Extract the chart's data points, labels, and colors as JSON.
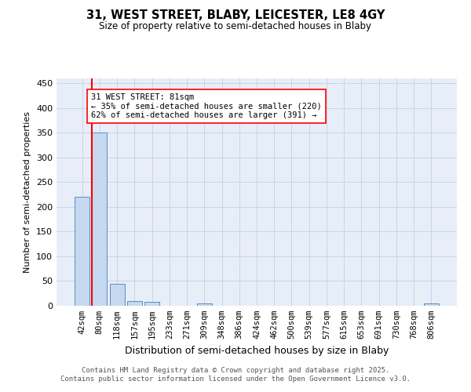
{
  "title_line1": "31, WEST STREET, BLABY, LEICESTER, LE8 4GY",
  "title_line2": "Size of property relative to semi-detached houses in Blaby",
  "xlabel": "Distribution of semi-detached houses by size in Blaby",
  "ylabel": "Number of semi-detached properties",
  "bins": [
    "42sqm",
    "80sqm",
    "118sqm",
    "157sqm",
    "195sqm",
    "233sqm",
    "271sqm",
    "309sqm",
    "348sqm",
    "386sqm",
    "424sqm",
    "462sqm",
    "500sqm",
    "539sqm",
    "577sqm",
    "615sqm",
    "653sqm",
    "691sqm",
    "730sqm",
    "768sqm",
    "806sqm"
  ],
  "values": [
    220,
    350,
    45,
    10,
    8,
    0,
    0,
    4,
    0,
    0,
    0,
    0,
    0,
    0,
    0,
    0,
    0,
    0,
    0,
    0,
    4
  ],
  "bar_color": "#c5d8f0",
  "bar_edge_color": "#5a8fc2",
  "highlight_bar_index": 1,
  "property_size": "81sqm",
  "property_name": "31 WEST STREET",
  "pct_smaller": 35,
  "pct_larger": 62,
  "count_smaller": 220,
  "count_larger": 391,
  "ylim": [
    0,
    460
  ],
  "yticks": [
    0,
    50,
    100,
    150,
    200,
    250,
    300,
    350,
    400,
    450
  ],
  "grid_color": "#c8d4e8",
  "background_color": "#e8eef8",
  "footer_line1": "Contains HM Land Registry data © Crown copyright and database right 2025.",
  "footer_line2": "Contains public sector information licensed under the Open Government Licence v3.0."
}
